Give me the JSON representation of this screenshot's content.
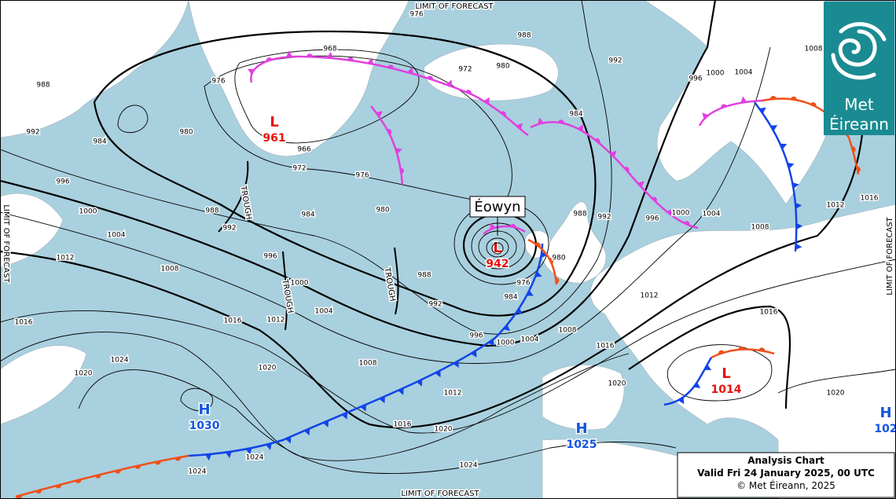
{
  "limit_labels": {
    "top": "LIMIT OF FORECAST",
    "bottom": "LIMIT OF FORECAST",
    "left": "LIMIT OF FORECAST",
    "right": "LIMIT OF FORECAST"
  },
  "storm_name": "Éowyn",
  "pressure_centres": [
    {
      "letter": "L",
      "value": 961
    },
    {
      "letter": "L",
      "value": 942
    },
    {
      "letter": "H",
      "value": 1030
    },
    {
      "letter": "H",
      "value": 1025
    },
    {
      "letter": "L",
      "value": 1014
    },
    {
      "letter": "H",
      "value": "102"
    }
  ],
  "trough_labels": [
    "TROUGH",
    "TROUGH",
    "TROUGH"
  ],
  "isobar_labels": [
    "976",
    "988",
    "968",
    "972",
    "980",
    "992",
    "1008",
    "996",
    "1000",
    "1004",
    "988",
    "992",
    "984",
    "980",
    "976",
    "966",
    "972",
    "976",
    "980",
    "984",
    "988",
    "992",
    "996",
    "1000",
    "1004",
    "1012",
    "1008",
    "996",
    "1000",
    "1004",
    "1016",
    "1016",
    "1012",
    "988",
    "992",
    "996",
    "1000",
    "1004",
    "1008",
    "976",
    "984",
    "984",
    "988",
    "992",
    "996",
    "1000",
    "1004",
    "1008",
    "1012",
    "1016",
    "1012",
    "1016",
    "1016",
    "1008",
    "1012",
    "1016",
    "1020",
    "1020",
    "1024",
    "1020",
    "1024",
    "1024",
    "1024",
    "1020",
    "1020",
    "980"
  ],
  "logo": {
    "line1": "Met",
    "line2": "Éireann"
  },
  "caption": {
    "title": "Analysis Chart",
    "valid": "Valid Fri 24 January 2025, 00 UTC",
    "copyright": "© Met Éireann, 2025"
  }
}
